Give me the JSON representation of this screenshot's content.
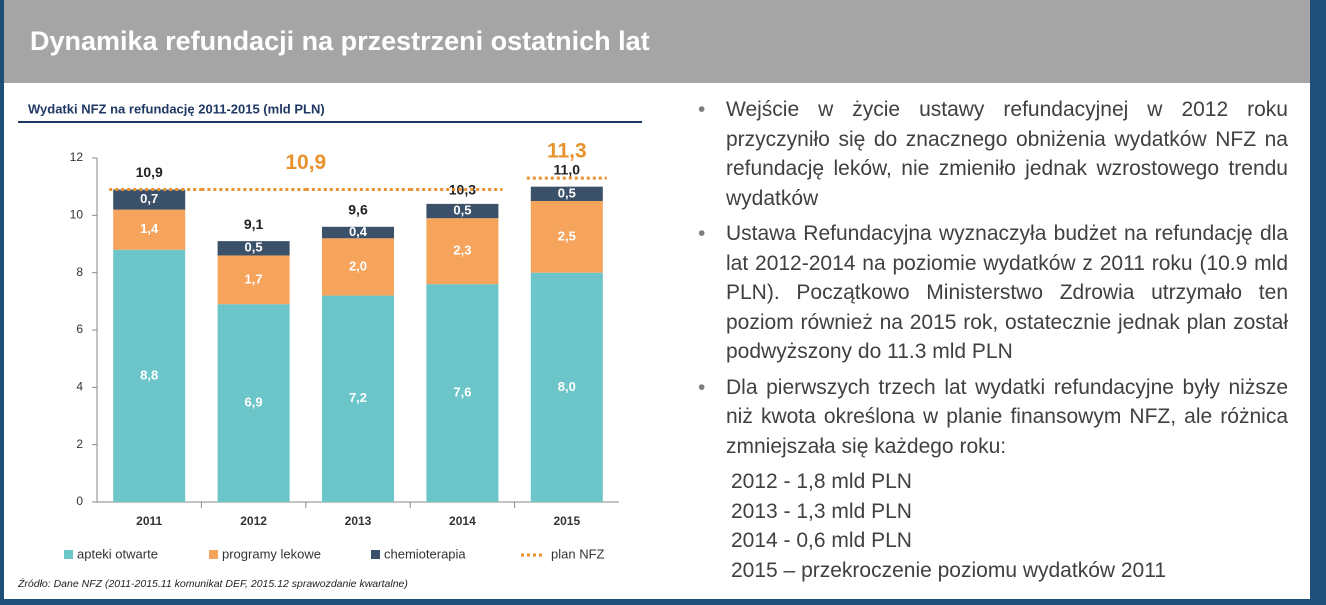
{
  "header": {
    "title": "Dynamika refundacji na przestrzeni ostatnich lat"
  },
  "chart_data": {
    "type": "stacked-bar",
    "title": "Wydatki NFZ na refundację 2011-2015 (mld PLN)",
    "categories": [
      "2011",
      "2012",
      "2013",
      "2014",
      "2015"
    ],
    "series": [
      {
        "name": "apteki otwarte",
        "color": "#6cc5c8",
        "values": [
          8.8,
          6.9,
          7.2,
          7.6,
          8.0
        ],
        "value_labels": [
          "8,8",
          "6,9",
          "7,2",
          "7,6",
          "8,0"
        ]
      },
      {
        "name": "programy lekowe",
        "color": "#f6a35c",
        "values": [
          1.4,
          1.7,
          2.0,
          2.3,
          2.5
        ],
        "value_labels": [
          "1,4",
          "1,7",
          "2,0",
          "2,3",
          "2,5"
        ]
      },
      {
        "name": "chemioterapia",
        "color": "#3b5069",
        "values": [
          0.7,
          0.5,
          0.4,
          0.5,
          0.5
        ],
        "value_labels": [
          "0,7",
          "0,5",
          "0,4",
          "0,5",
          "0,5"
        ]
      }
    ],
    "totals": [
      10.9,
      9.1,
      9.6,
      10.3,
      11.0
    ],
    "total_labels": [
      "10,9",
      "9,1",
      "9,6",
      "10,3",
      "11,0"
    ],
    "plan": {
      "name": "plan NFZ",
      "color": "#e8912d",
      "values": [
        10.9,
        10.9,
        10.9,
        10.9,
        11.3
      ],
      "value_labels": [
        null,
        "10,9",
        null,
        null,
        "11,3"
      ]
    },
    "ylim": [
      0,
      12
    ],
    "yticks": [
      0,
      2,
      4,
      6,
      8,
      10,
      12
    ],
    "source": "Źródło: Dane NFZ (2011-2015.11 komunikat DEF, 2015.12 sprawozdanie kwartalne)"
  },
  "bullets": [
    "Wejście w życie ustawy refundacyjnej w 2012 roku przyczyniło się do znacznego obniżenia wydatków NFZ na refundację leków, nie zmieniło jednak wzrostowego trendu wydatków",
    "Ustawa Refundacyjna wyznaczyła budżet na refundację dla lat 2012-2014 na poziomie wydatków z 2011 roku (10.9 mld PLN). Początkowo Ministerstwo Zdrowia utrzymało ten poziom również na 2015 rok, ostatecznie jednak plan został podwyższony do 11.3 mld PLN",
    "Dla pierwszych trzech lat wydatki refundacyjne były niższe niż kwota określona w planie finansowym NFZ, ale różnica zmniejszała się każdego roku:"
  ],
  "differences": [
    "2012 - 1,8 mld PLN",
    "2013 - 1,3 mld PLN",
    "2014 - 0,6 mld PLN",
    "2015 – przekroczenie poziomu wydatków 2011"
  ]
}
